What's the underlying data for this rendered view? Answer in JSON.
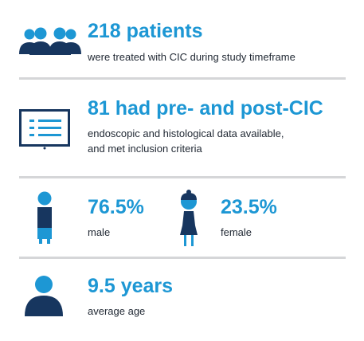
{
  "stats": [
    {
      "icon": "patients-group-icon",
      "headline": "218 patients",
      "description": "were treated with CIC during study timeframe"
    },
    {
      "icon": "monitor-list-icon",
      "headline": "81 had pre- and post-CIC",
      "description_lines": [
        "endoscopic and histological data available,",
        "and met inclusion criteria"
      ]
    },
    {
      "gender_split": [
        {
          "icon": "male-figure-icon",
          "value": "76.5%",
          "label": "male"
        },
        {
          "icon": "female-figure-icon",
          "value": "23.5%",
          "label": "female"
        }
      ]
    },
    {
      "icon": "person-bust-icon",
      "headline": "9.5 years",
      "description": "average age"
    }
  ],
  "colors": {
    "accent_blue": "#1d97d4",
    "navy": "#17365f",
    "text": "#222a35",
    "divider": "#d5d6d8"
  }
}
